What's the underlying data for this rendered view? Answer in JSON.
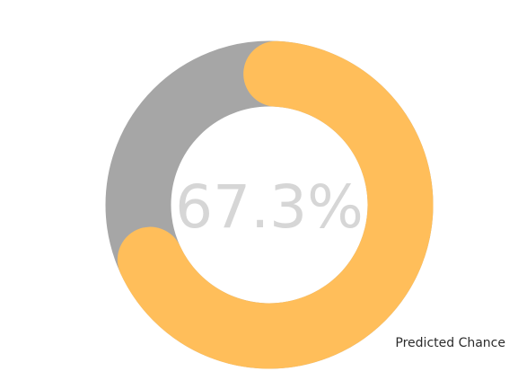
{
  "chart_data": {
    "type": "donut",
    "title": "",
    "value": 67.3,
    "max": 100,
    "center_label": "67.3%",
    "series_label": "Predicted Chance",
    "colors": {
      "value": "#ffbe5a",
      "track": "#a6a6a6",
      "center_text": "#d6d6d6",
      "label_text": "#2b2b2b"
    }
  }
}
